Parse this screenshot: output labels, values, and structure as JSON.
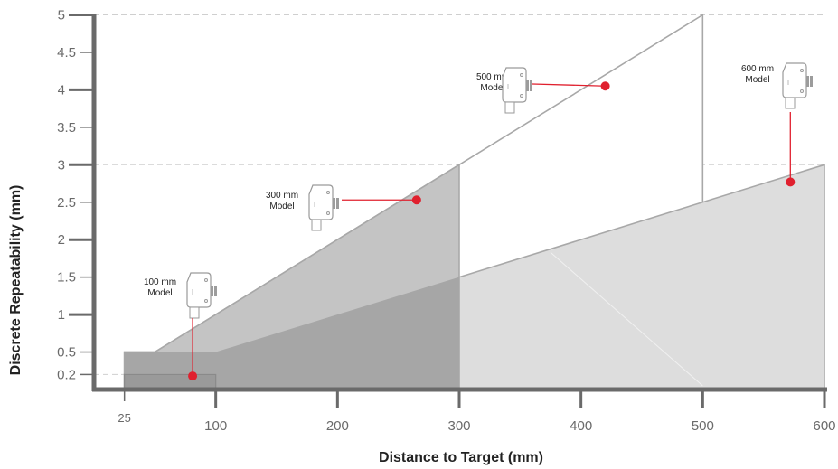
{
  "chart_data": {
    "type": "area",
    "xlabel": "Distance to Target (mm)",
    "ylabel": "Discrete Repeatability (mm)",
    "xlim": [
      0,
      600
    ],
    "ylim": [
      0,
      5
    ],
    "x_ticks": [
      {
        "value": 25,
        "label": "25"
      },
      {
        "value": 100,
        "label": "100"
      },
      {
        "value": 200,
        "label": "200"
      },
      {
        "value": 300,
        "label": "300"
      },
      {
        "value": 400,
        "label": "400"
      },
      {
        "value": 500,
        "label": "500"
      },
      {
        "value": 600,
        "label": "600"
      }
    ],
    "y_ticks": [
      {
        "value": 0.2,
        "label": "0.2"
      },
      {
        "value": 0.5,
        "label": "0.5"
      },
      {
        "value": 1,
        "label": "1"
      },
      {
        "value": 1.5,
        "label": "1.5"
      },
      {
        "value": 2,
        "label": "2"
      },
      {
        "value": 2.5,
        "label": "2.5"
      },
      {
        "value": 3,
        "label": "3"
      },
      {
        "value": 3.5,
        "label": "3.5"
      },
      {
        "value": 4,
        "label": "4"
      },
      {
        "value": 4.5,
        "label": "4.5"
      },
      {
        "value": 5,
        "label": "5"
      }
    ],
    "reference_lines_y": [
      0.2,
      0.5,
      3,
      5
    ],
    "series": [
      {
        "name_lines": [
          "500 mm",
          "Model"
        ],
        "fill": "#ffffff",
        "stroke": "#a8a8a8",
        "points": [
          [
            50,
            0.5
          ],
          [
            500,
            5
          ],
          [
            500,
            0
          ]
        ],
        "marker": [
          420,
          4.05
        ]
      },
      {
        "name_lines": [
          "600 mm",
          "Model"
        ],
        "fill": "#dddddd",
        "stroke": "#a8a8a8",
        "points": [
          [
            25,
            0.5
          ],
          [
            100,
            0.5
          ],
          [
            600,
            3
          ],
          [
            600,
            0
          ],
          [
            25,
            0
          ]
        ],
        "marker": [
          572,
          2.77
        ]
      },
      {
        "name_lines": [
          "300 mm",
          "Model"
        ],
        "fill": "#c4c4c4",
        "stroke": "#a8a8a8",
        "points": [
          [
            25,
            0.5
          ],
          [
            50,
            0.5
          ],
          [
            300,
            3
          ],
          [
            300,
            0
          ],
          [
            25,
            0
          ]
        ],
        "marker": [
          265,
          2.53
        ]
      },
      {
        "name_lines": [
          "100 mm",
          "Model"
        ],
        "fill": "#ababab",
        "stroke": "#8f8f8f",
        "points": [
          [
            25,
            0.2
          ],
          [
            100,
            0.2
          ],
          [
            100,
            0
          ],
          [
            25,
            0
          ]
        ],
        "marker": [
          81,
          0.18
        ]
      }
    ],
    "overlap_fill": "#a6a6a6",
    "marker_color": "#e0202e"
  }
}
